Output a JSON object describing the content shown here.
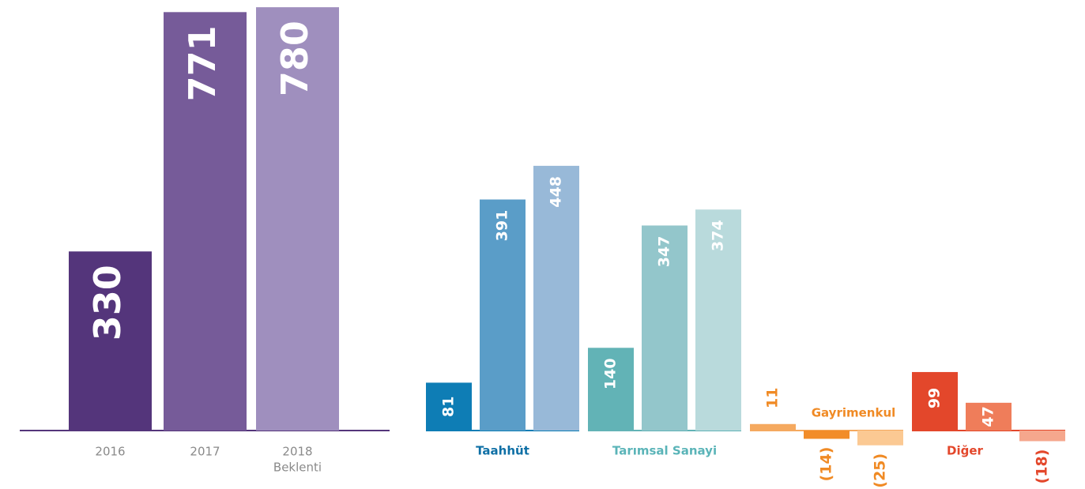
{
  "chart_data": [
    {
      "type": "bar",
      "categories": [
        "2016",
        "2017",
        "2018"
      ],
      "note": "Beklenti",
      "values": [
        330,
        771,
        780
      ],
      "colors": [
        "#54357b",
        "#765b99",
        "#9f8fbe"
      ],
      "axis_color": "#54357b"
    },
    {
      "type": "grouped_bar",
      "groups": [
        {
          "name": "Taahhüt",
          "label_color": "#0e6fa5",
          "colors": [
            "#0e7db5",
            "#5a9dc8",
            "#98b9d8"
          ],
          "values": [
            81,
            391,
            448
          ]
        },
        {
          "name": "Tarımsal Sanayi",
          "label_color": "#5ab4b8",
          "colors": [
            "#62b3b6",
            "#93c6cb",
            "#b9dadc"
          ],
          "values": [
            140,
            347,
            374
          ]
        },
        {
          "name": "Gayrimenkul",
          "label_color": "#f08a24",
          "colors": [
            "#f5a95f",
            "#f28c28",
            "#fbc993"
          ],
          "values": [
            11,
            -14,
            -25
          ],
          "value_labels": [
            "11",
            "(14)",
            "(25)"
          ]
        },
        {
          "name": "Diğer",
          "label_color": "#e3472b",
          "colors": [
            "#e3472b",
            "#ef7d5a",
            "#f5a78d"
          ],
          "values": [
            99,
            47,
            -18
          ],
          "value_labels": [
            "99",
            "47",
            "(18)"
          ]
        }
      ]
    }
  ]
}
